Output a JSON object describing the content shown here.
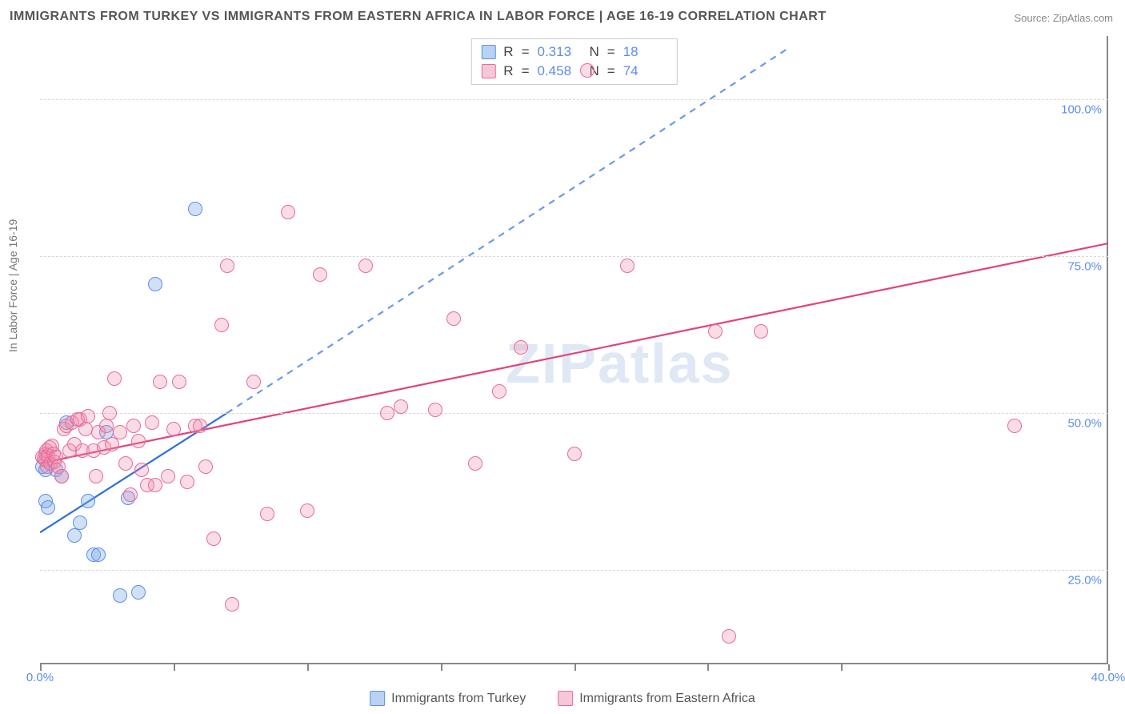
{
  "title": "IMMIGRANTS FROM TURKEY VS IMMIGRANTS FROM EASTERN AFRICA IN LABOR FORCE | AGE 16-19 CORRELATION CHART",
  "source": "Source: ZipAtlas.com",
  "y_axis_label": "In Labor Force | Age 16-19",
  "watermark": "ZIPatlas",
  "colors": {
    "series_a_fill": "rgba(120,170,230,0.35)",
    "series_a_stroke": "#5b8def",
    "series_b_fill": "rgba(240,140,170,0.3)",
    "series_b_stroke": "#e76a9b",
    "trend_a": "#2e6fd9",
    "trend_a_dash": "#6a9ae8",
    "trend_b": "#e3427a",
    "axis_label_color": "#5b8def",
    "grid_color": "#d8d8d8"
  },
  "chart": {
    "type": "scatter",
    "xlim": [
      0,
      40
    ],
    "ylim": [
      10,
      110
    ],
    "x_ticks": [
      0,
      5,
      10,
      15,
      20,
      25,
      30,
      40
    ],
    "x_tick_labels": {
      "0": "0.0%",
      "40": "40.0%"
    },
    "y_ticks": [
      25,
      50,
      75,
      100
    ],
    "y_tick_labels": {
      "25": "25.0%",
      "50": "50.0%",
      "75": "75.0%",
      "100": "100.0%"
    },
    "point_radius": 9,
    "point_stroke_width": 1.5,
    "trend_line_width": 2.2
  },
  "series": [
    {
      "id": "turkey",
      "label": "Immigrants from Turkey",
      "swatch_fill": "#b7d2f3",
      "swatch_stroke": "#5b8def",
      "R": "0.313",
      "N": "18",
      "trend_solid": {
        "x1": 0,
        "y1": 31,
        "x2": 7,
        "y2": 50
      },
      "trend_dash": {
        "x1": 7,
        "y1": 50,
        "x2": 28,
        "y2": 108
      },
      "points": [
        [
          0.1,
          41.5
        ],
        [
          0.2,
          41.0
        ],
        [
          0.2,
          36.0
        ],
        [
          0.3,
          35.0
        ],
        [
          0.6,
          41.0
        ],
        [
          0.8,
          40.0
        ],
        [
          1.0,
          48.5
        ],
        [
          1.3,
          30.5
        ],
        [
          1.5,
          32.5
        ],
        [
          1.8,
          36.0
        ],
        [
          2.0,
          27.5
        ],
        [
          2.2,
          27.5
        ],
        [
          2.5,
          47.0
        ],
        [
          3.0,
          21.0
        ],
        [
          3.3,
          36.5
        ],
        [
          3.7,
          21.5
        ],
        [
          4.3,
          70.5
        ],
        [
          5.8,
          82.5
        ]
      ]
    },
    {
      "id": "eastern_africa",
      "label": "Immigrants from Eastern Africa",
      "swatch_fill": "#f6c7d7",
      "swatch_stroke": "#e76a9b",
      "R": "0.458",
      "N": "74",
      "trend_solid": {
        "x1": 0,
        "y1": 42,
        "x2": 40,
        "y2": 77
      },
      "points": [
        [
          0.1,
          43.0
        ],
        [
          0.15,
          42.8
        ],
        [
          0.2,
          42.5
        ],
        [
          0.22,
          43.5
        ],
        [
          0.25,
          44.0
        ],
        [
          0.28,
          41.5
        ],
        [
          0.3,
          43.2
        ],
        [
          0.35,
          44.5
        ],
        [
          0.4,
          42.0
        ],
        [
          0.45,
          44.8
        ],
        [
          0.5,
          43.5
        ],
        [
          0.55,
          42.2
        ],
        [
          0.6,
          43.0
        ],
        [
          0.7,
          41.5
        ],
        [
          0.8,
          40.0
        ],
        [
          0.9,
          47.5
        ],
        [
          1.0,
          48.0
        ],
        [
          1.1,
          44.0
        ],
        [
          1.2,
          48.5
        ],
        [
          1.3,
          45.0
        ],
        [
          1.4,
          49.0
        ],
        [
          1.5,
          49.0
        ],
        [
          1.6,
          44.0
        ],
        [
          1.7,
          47.5
        ],
        [
          1.8,
          49.5
        ],
        [
          2.0,
          44.0
        ],
        [
          2.1,
          40.0
        ],
        [
          2.2,
          47.0
        ],
        [
          2.4,
          44.5
        ],
        [
          2.5,
          48.0
        ],
        [
          2.6,
          50.0
        ],
        [
          2.7,
          45.0
        ],
        [
          2.8,
          55.5
        ],
        [
          3.0,
          47.0
        ],
        [
          3.2,
          42.0
        ],
        [
          3.4,
          37.0
        ],
        [
          3.5,
          48.0
        ],
        [
          3.7,
          45.5
        ],
        [
          3.8,
          41.0
        ],
        [
          4.0,
          38.5
        ],
        [
          4.2,
          48.5
        ],
        [
          4.3,
          38.5
        ],
        [
          4.5,
          55.0
        ],
        [
          4.8,
          40.0
        ],
        [
          5.0,
          47.5
        ],
        [
          5.2,
          55.0
        ],
        [
          5.5,
          39.0
        ],
        [
          5.8,
          48.0
        ],
        [
          6.0,
          48.0
        ],
        [
          6.2,
          41.5
        ],
        [
          6.5,
          30.0
        ],
        [
          6.8,
          64.0
        ],
        [
          7.0,
          73.5
        ],
        [
          7.2,
          19.5
        ],
        [
          8.0,
          55.0
        ],
        [
          8.5,
          34.0
        ],
        [
          9.3,
          82.0
        ],
        [
          10.0,
          34.5
        ],
        [
          10.5,
          72.0
        ],
        [
          12.2,
          73.5
        ],
        [
          13.0,
          50.0
        ],
        [
          13.5,
          51.0
        ],
        [
          14.8,
          50.5
        ],
        [
          15.5,
          65.0
        ],
        [
          16.3,
          42.0
        ],
        [
          17.2,
          53.5
        ],
        [
          18.0,
          60.5
        ],
        [
          20.0,
          43.5
        ],
        [
          20.5,
          104.5
        ],
        [
          22.0,
          73.5
        ],
        [
          25.3,
          63.0
        ],
        [
          25.8,
          14.5
        ],
        [
          27.0,
          63.0
        ],
        [
          36.5,
          48.0
        ]
      ]
    }
  ],
  "stats_labels": {
    "R": "R",
    "equals": "=",
    "N": "N"
  }
}
